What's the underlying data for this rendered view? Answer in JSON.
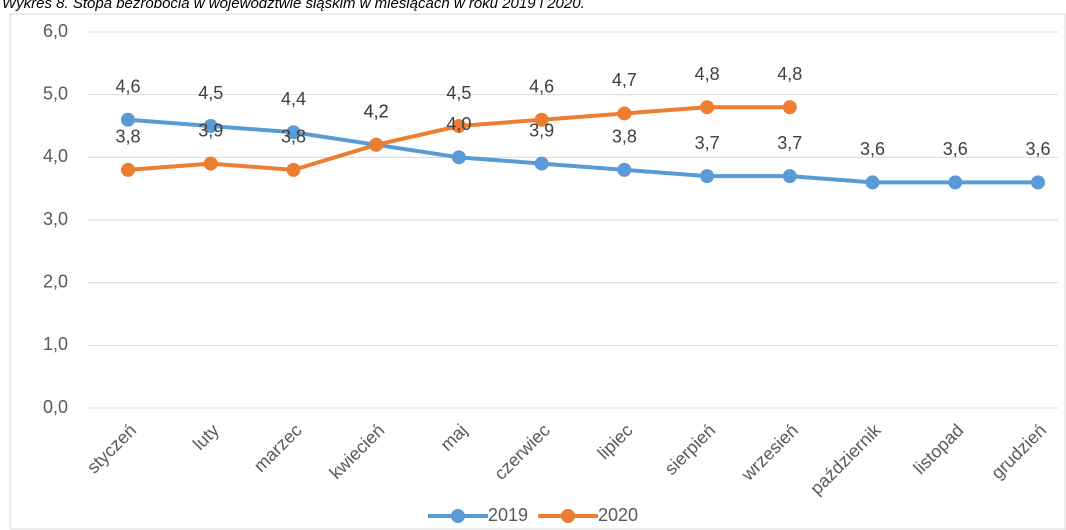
{
  "chart_data": {
    "type": "line",
    "title": "Wykres 8. Stopa bezrobocia w województwie śląskim w miesiącach w roku 2019 i 2020.",
    "categories": [
      "styczeń",
      "luty",
      "marzec",
      "kwiecień",
      "maj",
      "czerwiec",
      "lipiec",
      "sierpień",
      "wrzesień",
      "październik",
      "listopad",
      "grudzień"
    ],
    "series": [
      {
        "name": "2019",
        "color": "#5b9bd5",
        "values": [
          4.6,
          4.5,
          4.4,
          4.2,
          4.0,
          3.9,
          3.8,
          3.7,
          3.7,
          3.6,
          3.6,
          3.6
        ],
        "value_labels": [
          "4,6",
          "4,5",
          "4,4",
          "4,2",
          "4,0",
          "3,9",
          "3,8",
          "3,7",
          "3,7",
          "3,6",
          "3,6",
          "3,6"
        ]
      },
      {
        "name": "2020",
        "color": "#ed7d31",
        "values": [
          3.8,
          3.9,
          3.8,
          4.2,
          4.5,
          4.6,
          4.7,
          4.8,
          4.8,
          null,
          null,
          null
        ],
        "value_labels": [
          "3,8",
          "3,9",
          "3,8",
          "4,2",
          "4,5",
          "4,6",
          "4,7",
          "4,8",
          "4,8",
          null,
          null,
          null
        ]
      }
    ],
    "ylim": [
      0,
      6
    ],
    "yticks": [
      {
        "value": 0,
        "label": "0,0"
      },
      {
        "value": 1,
        "label": "1,0"
      },
      {
        "value": 2,
        "label": "2,0"
      },
      {
        "value": 3,
        "label": "3,0"
      },
      {
        "value": 4,
        "label": "4,0"
      },
      {
        "value": 5,
        "label": "5,0"
      },
      {
        "value": 6,
        "label": "6,0"
      }
    ],
    "grid": true,
    "legend": "bottom"
  }
}
